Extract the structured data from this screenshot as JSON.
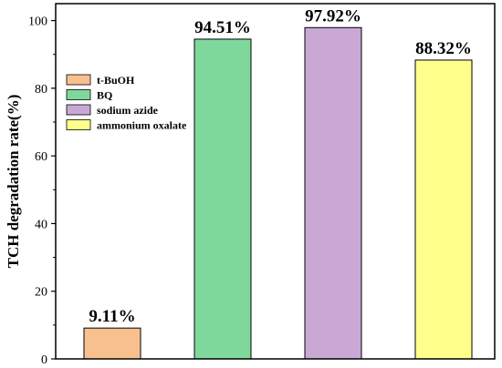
{
  "chart_data": {
    "type": "bar",
    "title": "",
    "xlabel": "",
    "ylabel": "TCH degradation rate(%)",
    "ylim": [
      0,
      105
    ],
    "yticks": [
      0,
      20,
      40,
      60,
      80,
      100
    ],
    "grid": false,
    "legend_position": "top-left",
    "categories": [
      "t-BuOH",
      "BQ",
      "sodium azide",
      "ammonium oxalate"
    ],
    "values": [
      9.11,
      94.51,
      97.92,
      88.32
    ],
    "data_labels": [
      "9.11%",
      "94.51%",
      "97.92%",
      "88.32%"
    ],
    "colors": [
      "#f9c08f",
      "#7fd89b",
      "#c9a8d6",
      "#ffff8c"
    ]
  }
}
